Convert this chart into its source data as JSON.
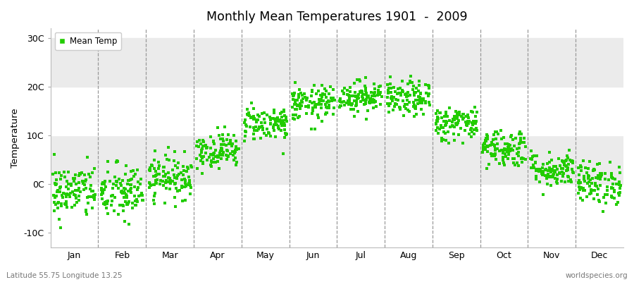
{
  "title": "Monthly Mean Temperatures 1901  -  2009",
  "ylabel": "Temperature",
  "xlabel_labels": [
    "Jan",
    "Feb",
    "Mar",
    "Apr",
    "May",
    "Jun",
    "Jul",
    "Aug",
    "Sep",
    "Oct",
    "Nov",
    "Dec"
  ],
  "ytick_labels": [
    "-10C",
    "0C",
    "10C",
    "20C",
    "30C"
  ],
  "ytick_values": [
    -10,
    0,
    10,
    20,
    30
  ],
  "ylim": [
    -13,
    32
  ],
  "legend_label": "Mean Temp",
  "dot_color": "#22cc00",
  "dot_size": 6,
  "footer_left": "Latitude 55.75 Longitude 13.25",
  "footer_right": "worldspecies.org",
  "background_color": "#ffffff",
  "plot_bg_color": "#ffffff",
  "hband_color": "#ebebeb",
  "grid_color": "#888888",
  "num_years": 109,
  "monthly_means": [
    -1.5,
    -1.8,
    1.5,
    7.0,
    12.5,
    16.5,
    18.0,
    17.5,
    12.5,
    7.5,
    3.0,
    0.2
  ],
  "monthly_stds": [
    2.8,
    3.0,
    2.2,
    1.8,
    1.8,
    1.8,
    1.6,
    1.8,
    1.8,
    2.0,
    1.8,
    2.2
  ]
}
